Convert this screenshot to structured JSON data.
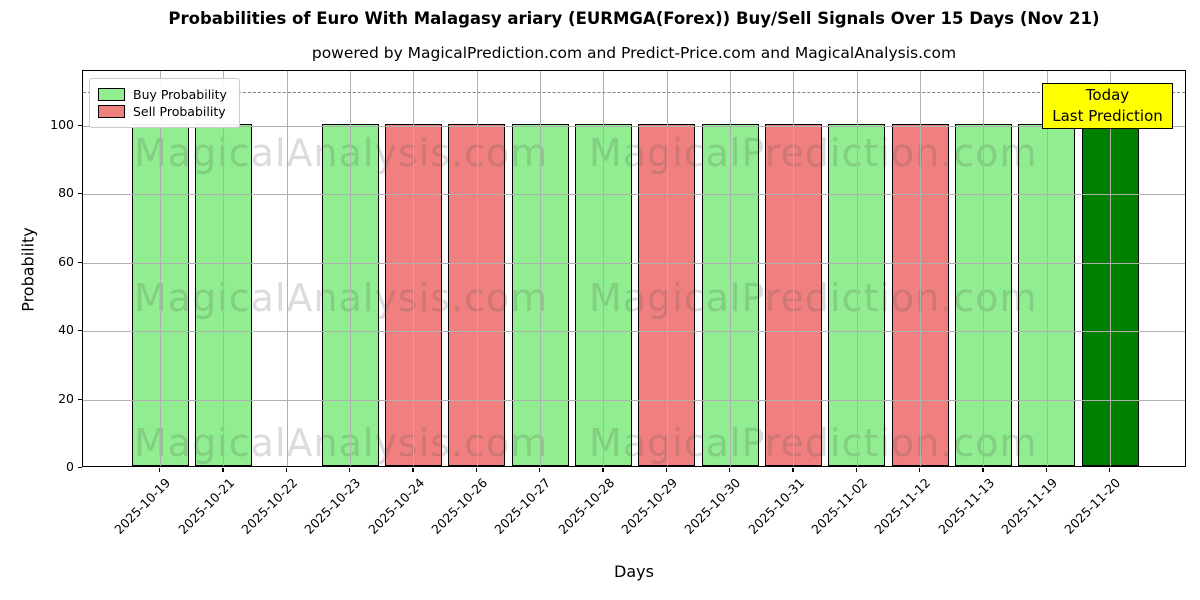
{
  "title": "Probabilities of Euro With Malagasy ariary (EURMGA(Forex)) Buy/Sell Signals Over 15 Days (Nov 21)",
  "subtitle": "powered by MagicalPrediction.com and Predict-Price.com and MagicalAnalysis.com",
  "watermarks": {
    "left": "MagicalAnalysis.com",
    "right": "MagicalPrediction.com"
  },
  "legend": {
    "items": [
      {
        "label": "Buy Probability",
        "color": "#90EE90"
      },
      {
        "label": "Sell Probability",
        "color": "#F08080"
      }
    ]
  },
  "annotation": {
    "line1": "Today",
    "line2": "Last Prediction",
    "bg_color": "#FFFF00"
  },
  "axes": {
    "xlabel": "Days",
    "ylabel": "Probability",
    "yticks": [
      0,
      20,
      40,
      60,
      80,
      100
    ],
    "ylim": [
      0,
      116
    ],
    "threshold_line": 110,
    "grid": true
  },
  "colors": {
    "buy": "#90EE90",
    "sell": "#F08080",
    "today": "#008000",
    "bar_edge": "#000000",
    "grid": "#B0B0B0",
    "dashed_line": "#808080"
  },
  "chart_data": {
    "type": "bar",
    "title": "Probabilities of Euro With Malagasy ariary (EURMGA(Forex)) Buy/Sell Signals Over 15 Days (Nov 21)",
    "xlabel": "Days",
    "ylabel": "Probability",
    "ylim": [
      0,
      116
    ],
    "grid": true,
    "legend_position": "upper left",
    "dashed_threshold_y": 110,
    "categories": [
      "2025-10-19",
      "2025-10-21",
      "2025-10-22",
      "2025-10-23",
      "2025-10-24",
      "2025-10-26",
      "2025-10-27",
      "2025-10-28",
      "2025-10-29",
      "2025-10-30",
      "2025-10-31",
      "2025-11-02",
      "2025-11-12",
      "2025-11-13",
      "2025-11-19",
      "2025-11-20"
    ],
    "bars": [
      {
        "date": "2025-10-19",
        "value": 100,
        "signal": "buy"
      },
      {
        "date": "2025-10-21",
        "value": 100,
        "signal": "buy"
      },
      {
        "date": "2025-10-22",
        "value": null,
        "signal": "none"
      },
      {
        "date": "2025-10-23",
        "value": 100,
        "signal": "buy"
      },
      {
        "date": "2025-10-24",
        "value": 100,
        "signal": "sell"
      },
      {
        "date": "2025-10-26",
        "value": 100,
        "signal": "sell"
      },
      {
        "date": "2025-10-27",
        "value": 100,
        "signal": "buy"
      },
      {
        "date": "2025-10-28",
        "value": 100,
        "signal": "buy"
      },
      {
        "date": "2025-10-29",
        "value": 100,
        "signal": "sell"
      },
      {
        "date": "2025-10-30",
        "value": 100,
        "signal": "buy"
      },
      {
        "date": "2025-10-31",
        "value": 100,
        "signal": "sell"
      },
      {
        "date": "2025-11-02",
        "value": 100,
        "signal": "buy"
      },
      {
        "date": "2025-11-12",
        "value": 100,
        "signal": "sell"
      },
      {
        "date": "2025-11-13",
        "value": 100,
        "signal": "buy"
      },
      {
        "date": "2025-11-19",
        "value": 100,
        "signal": "buy"
      },
      {
        "date": "2025-11-20",
        "value": 100,
        "signal": "today"
      }
    ],
    "series": [
      {
        "name": "Buy Probability",
        "color": "#90EE90",
        "values": [
          100,
          100,
          null,
          100,
          null,
          null,
          100,
          100,
          null,
          100,
          null,
          100,
          null,
          100,
          100,
          null
        ]
      },
      {
        "name": "Sell Probability",
        "color": "#F08080",
        "values": [
          null,
          null,
          null,
          null,
          100,
          100,
          null,
          null,
          100,
          null,
          100,
          null,
          100,
          null,
          null,
          null
        ]
      },
      {
        "name": "Today (Last Prediction)",
        "color": "#008000",
        "values": [
          null,
          null,
          null,
          null,
          null,
          null,
          null,
          null,
          null,
          null,
          null,
          null,
          null,
          null,
          null,
          100
        ]
      }
    ]
  }
}
